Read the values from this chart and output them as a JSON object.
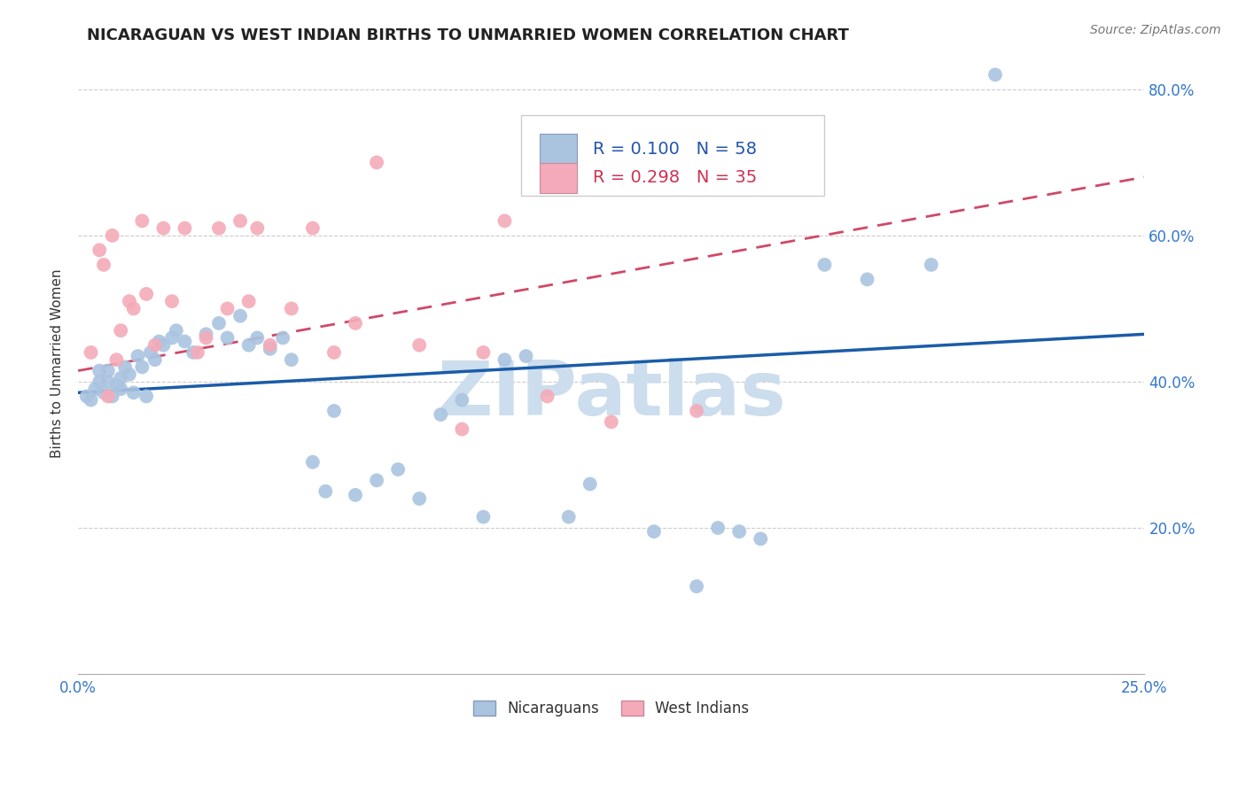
{
  "title": "NICARAGUAN VS WEST INDIAN BIRTHS TO UNMARRIED WOMEN CORRELATION CHART",
  "source": "Source: ZipAtlas.com",
  "ylabel": "Births to Unmarried Women",
  "x_min": 0.0,
  "x_max": 0.25,
  "y_min": 0.0,
  "y_max": 0.85,
  "nicaraguan_color": "#aac4e0",
  "west_indian_color": "#f4aab8",
  "nicaraguan_line_color": "#1a5ca8",
  "west_indian_line_color": "#d04868",
  "watermark": "ZIPatlas",
  "watermark_color": "#ccdded",
  "legend_label1": "Nicaraguans",
  "legend_label2": "West Indians",
  "title_fontsize": 13,
  "source_fontsize": 10,
  "blue_x": [
    0.002,
    0.003,
    0.004,
    0.005,
    0.005,
    0.006,
    0.007,
    0.007,
    0.008,
    0.009,
    0.01,
    0.01,
    0.011,
    0.012,
    0.013,
    0.014,
    0.015,
    0.016,
    0.017,
    0.018,
    0.019,
    0.02,
    0.022,
    0.023,
    0.025,
    0.027,
    0.03,
    0.033,
    0.035,
    0.038,
    0.04,
    0.042,
    0.045,
    0.048,
    0.05,
    0.055,
    0.058,
    0.06,
    0.065,
    0.07,
    0.075,
    0.08,
    0.085,
    0.09,
    0.095,
    0.1,
    0.105,
    0.115,
    0.12,
    0.135,
    0.145,
    0.15,
    0.155,
    0.16,
    0.175,
    0.185,
    0.2,
    0.215
  ],
  "blue_y": [
    0.38,
    0.375,
    0.39,
    0.4,
    0.415,
    0.385,
    0.4,
    0.415,
    0.38,
    0.395,
    0.39,
    0.405,
    0.42,
    0.41,
    0.385,
    0.435,
    0.42,
    0.38,
    0.44,
    0.43,
    0.455,
    0.45,
    0.46,
    0.47,
    0.455,
    0.44,
    0.465,
    0.48,
    0.46,
    0.49,
    0.45,
    0.46,
    0.445,
    0.46,
    0.43,
    0.29,
    0.25,
    0.36,
    0.245,
    0.265,
    0.28,
    0.24,
    0.355,
    0.375,
    0.215,
    0.43,
    0.435,
    0.215,
    0.26,
    0.195,
    0.12,
    0.2,
    0.195,
    0.185,
    0.56,
    0.54,
    0.56,
    0.82
  ],
  "pink_x": [
    0.003,
    0.005,
    0.006,
    0.007,
    0.008,
    0.009,
    0.01,
    0.012,
    0.013,
    0.015,
    0.016,
    0.018,
    0.02,
    0.022,
    0.025,
    0.028,
    0.03,
    0.033,
    0.035,
    0.038,
    0.04,
    0.042,
    0.045,
    0.05,
    0.055,
    0.06,
    0.065,
    0.07,
    0.08,
    0.09,
    0.095,
    0.1,
    0.11,
    0.125,
    0.145
  ],
  "pink_y": [
    0.44,
    0.58,
    0.56,
    0.38,
    0.6,
    0.43,
    0.47,
    0.51,
    0.5,
    0.62,
    0.52,
    0.45,
    0.61,
    0.51,
    0.61,
    0.44,
    0.46,
    0.61,
    0.5,
    0.62,
    0.51,
    0.61,
    0.45,
    0.5,
    0.61,
    0.44,
    0.48,
    0.7,
    0.45,
    0.335,
    0.44,
    0.62,
    0.38,
    0.345,
    0.36
  ],
  "blue_trend_x": [
    0.0,
    0.25
  ],
  "blue_trend_y": [
    0.385,
    0.465
  ],
  "pink_trend_x": [
    0.0,
    0.25
  ],
  "pink_trend_y": [
    0.415,
    0.68
  ]
}
